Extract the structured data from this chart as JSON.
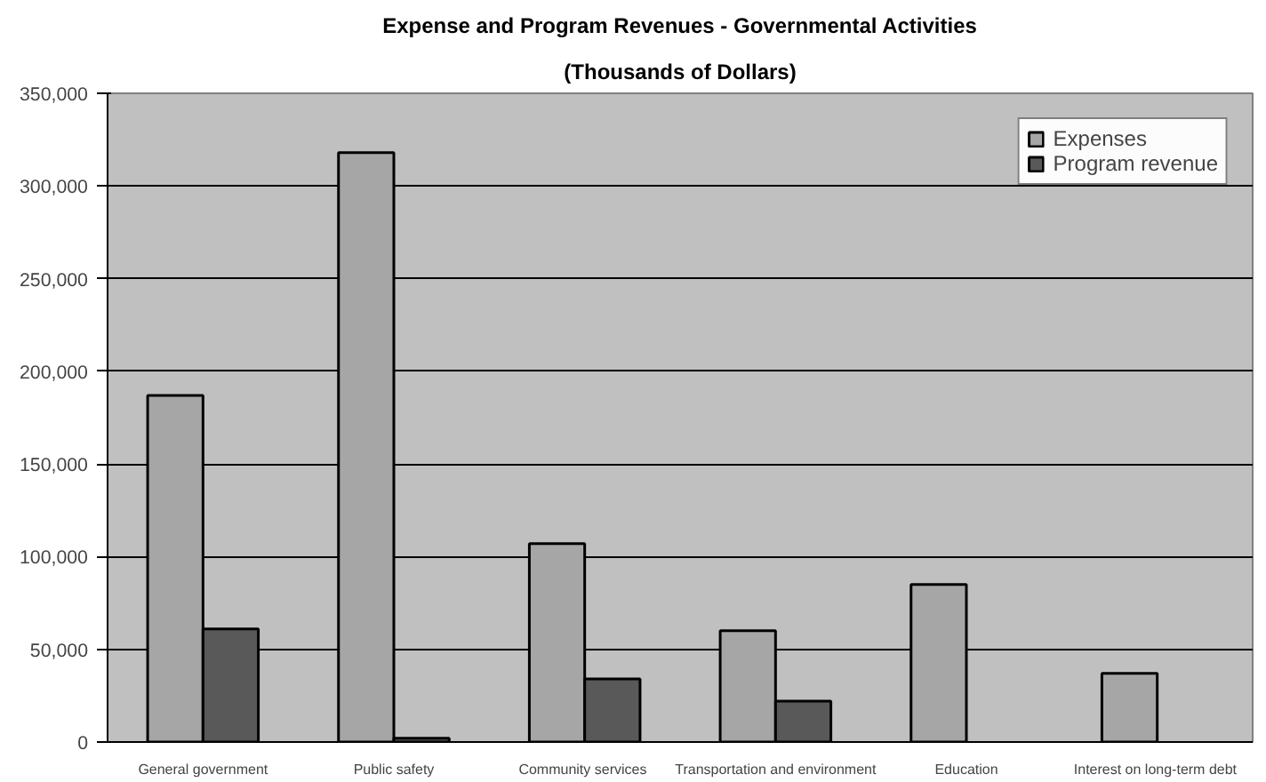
{
  "chart_data": {
    "type": "bar",
    "title": "Expense and Program Revenues - Governmental Activities",
    "subtitle": "(Thousands of Dollars)",
    "categories": [
      "General government",
      "Public safety",
      "Community  services",
      "Transportation and environment",
      "Education",
      "Interest on long-term  debt"
    ],
    "series": [
      {
        "name": "Expenses",
        "color": "#a6a6a6",
        "values": [
          187000,
          318000,
          107000,
          60000,
          85000,
          37000
        ]
      },
      {
        "name": "Program revenue",
        "color": "#595959",
        "values": [
          61000,
          2000,
          34000,
          22000,
          null,
          null
        ]
      }
    ],
    "ylim": [
      0,
      350000
    ],
    "yticks": [
      {
        "value": 0,
        "label": "0"
      },
      {
        "value": 50000,
        "label": "50,000"
      },
      {
        "value": 100000,
        "label": "100,000"
      },
      {
        "value": 150000,
        "label": "150,000"
      },
      {
        "value": 200000,
        "label": "200,000"
      },
      {
        "value": 250000,
        "label": "250,000"
      },
      {
        "value": 300000,
        "label": "300,000"
      },
      {
        "value": 350000,
        "label": "350,000"
      }
    ],
    "grid": "y",
    "legend": "top right"
  }
}
